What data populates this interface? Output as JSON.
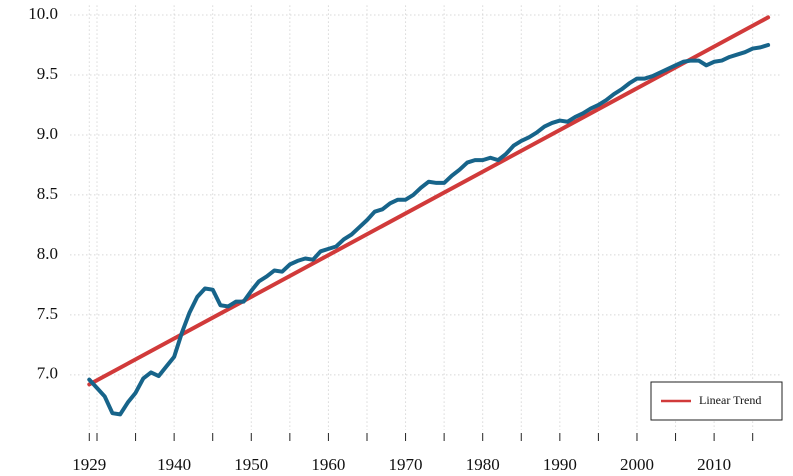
{
  "chart_data": {
    "type": "line",
    "xlim": [
      1926.5,
      2018.8
    ],
    "xticks": [
      1929,
      1940,
      1950,
      1960,
      1970,
      1980,
      1990,
      2000,
      2010
    ],
    "xticks_minor": [
      1930,
      1935,
      1945,
      1955,
      1965,
      1975,
      1985,
      1995,
      2005,
      2015
    ],
    "ylim": [
      6.54,
      10.08
    ],
    "yticks": [
      {
        "value": 7,
        "label": "7.0"
      },
      {
        "value": 7.5,
        "label": "7.5"
      },
      {
        "value": 8,
        "label": "8.0"
      },
      {
        "value": 8.5,
        "label": "8.5"
      },
      {
        "value": 9,
        "label": "9.0"
      },
      {
        "value": 9.5,
        "label": "9.5"
      },
      {
        "value": 10,
        "label": "10.0"
      }
    ],
    "grid": true,
    "legend": "lower right",
    "series": [
      {
        "color": "#17648a",
        "x": [
          1929,
          1930,
          1931,
          1932,
          1933,
          1934,
          1935,
          1936,
          1937,
          1938,
          1939,
          1940,
          1941,
          1942,
          1943,
          1944,
          1945,
          1946,
          1947,
          1948,
          1949,
          1950,
          1951,
          1952,
          1953,
          1954,
          1955,
          1956,
          1957,
          1958,
          1959,
          1960,
          1961,
          1962,
          1963,
          1964,
          1965,
          1966,
          1967,
          1968,
          1969,
          1970,
          1971,
          1972,
          1973,
          1974,
          1975,
          1976,
          1977,
          1978,
          1979,
          1980,
          1981,
          1982,
          1983,
          1984,
          1985,
          1986,
          1987,
          1988,
          1989,
          1990,
          1991,
          1992,
          1993,
          1994,
          1995,
          1996,
          1997,
          1998,
          1999,
          2000,
          2001,
          2002,
          2003,
          2004,
          2005,
          2006,
          2007,
          2008,
          2009,
          2010,
          2011,
          2012,
          2013,
          2014,
          2015,
          2016,
          2017
        ],
        "values": [
          6.96,
          6.89,
          6.82,
          6.68,
          6.67,
          6.77,
          6.85,
          6.97,
          7.02,
          6.99,
          7.07,
          7.15,
          7.35,
          7.52,
          7.65,
          7.72,
          7.71,
          7.58,
          7.57,
          7.61,
          7.61,
          7.7,
          7.78,
          7.82,
          7.87,
          7.86,
          7.92,
          7.95,
          7.97,
          7.96,
          8.03,
          8.05,
          8.07,
          8.13,
          8.17,
          8.23,
          8.29,
          8.36,
          8.38,
          8.43,
          8.46,
          8.46,
          8.5,
          8.56,
          8.61,
          8.6,
          8.6,
          8.66,
          8.71,
          8.77,
          8.79,
          8.79,
          8.81,
          8.79,
          8.84,
          8.91,
          8.95,
          8.98,
          9.02,
          9.07,
          9.1,
          9.12,
          9.11,
          9.15,
          9.18,
          9.22,
          9.25,
          9.29,
          9.34,
          9.38,
          9.43,
          9.47,
          9.47,
          9.49,
          9.52,
          9.55,
          9.58,
          9.61,
          9.62,
          9.62,
          9.58,
          9.61,
          9.62,
          9.65,
          9.67,
          9.69,
          9.72,
          9.73,
          9.75
        ]
      },
      {
        "name": "Linear Trend",
        "color": "#d13a3a",
        "x": [
          1929,
          2017
        ],
        "values": [
          6.92,
          9.98
        ]
      }
    ]
  }
}
